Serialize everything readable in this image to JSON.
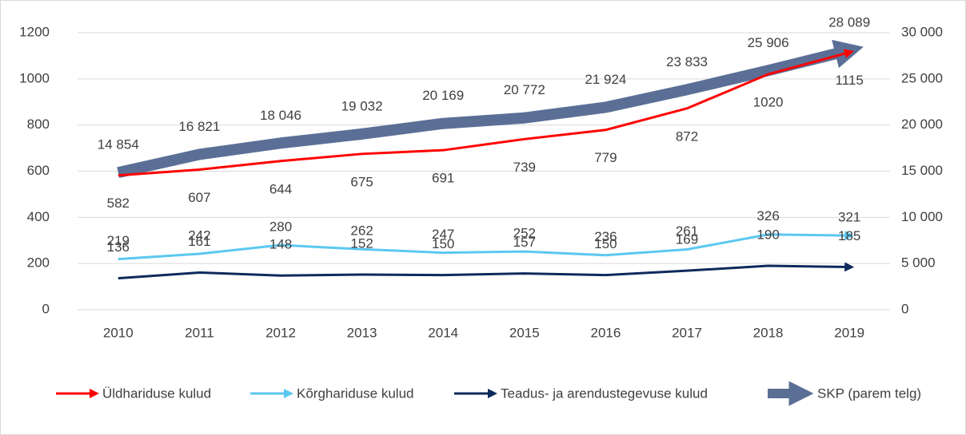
{
  "chart_data": {
    "type": "line",
    "categories": [
      "2010",
      "2011",
      "2012",
      "2013",
      "2014",
      "2015",
      "2016",
      "2017",
      "2018",
      "2019"
    ],
    "ylim": [
      0,
      1200
    ],
    "yticks": [
      0,
      200,
      400,
      600,
      800,
      1000,
      1200
    ],
    "y2lim": [
      0,
      30000
    ],
    "y2ticks": [
      0,
      {
        "value": 5000,
        "label": "5 000"
      },
      {
        "value": 10000,
        "label": "10 000"
      },
      {
        "value": 15000,
        "label": "15 000"
      },
      {
        "value": 20000,
        "label": "20 000"
      },
      {
        "value": 25000,
        "label": "25 000"
      },
      {
        "value": 30000,
        "label": "30 000"
      }
    ],
    "grid": true,
    "legend": "bottom",
    "series": [
      {
        "name": "Üldhariduse kulud",
        "color": "#ff0000",
        "values": [
          582,
          607,
          644,
          675,
          691,
          739,
          779,
          872,
          1020,
          1115
        ]
      },
      {
        "name": "Kõrghariduse kulud",
        "color": "#5bc8f0",
        "values": [
          219,
          242,
          280,
          262,
          247,
          252,
          236,
          261,
          326,
          321
        ]
      },
      {
        "name": "Teadus- ja arendustegevuse kulud",
        "color": "#0d2a5c",
        "values": [
          136,
          161,
          148,
          152,
          150,
          157,
          150,
          169,
          190,
          185
        ]
      },
      {
        "name": "SKP (parem telg)",
        "color": "#5b6f96",
        "axis": "y2",
        "values": [
          14854,
          16821,
          18046,
          19032,
          20169,
          20772,
          21924,
          23833,
          25906,
          28089
        ],
        "value_labels": [
          "14 854",
          "16 821",
          "18 046",
          "19 032",
          "20 169",
          "20 772",
          "21 924",
          "23 833",
          "25 906",
          "28 089"
        ]
      }
    ]
  }
}
